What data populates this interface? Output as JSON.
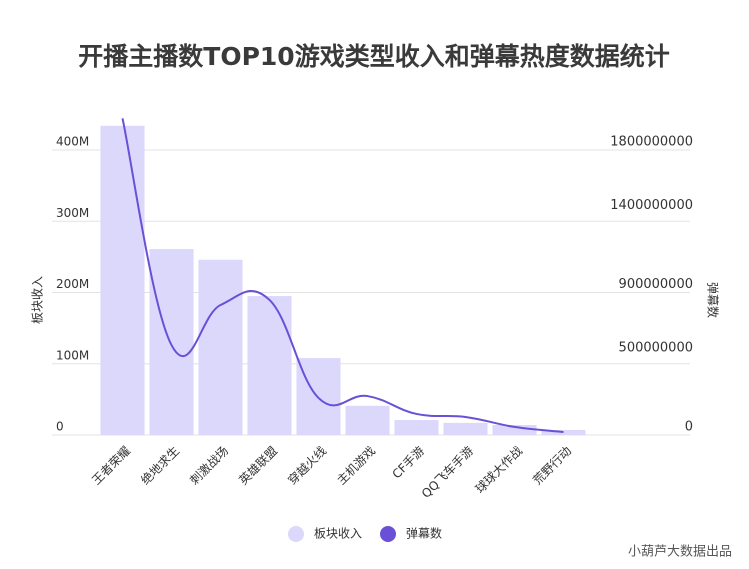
{
  "chart_data": {
    "type": "bar_line",
    "title": "开播主播数TOP10游戏类型收入和弹幕热度数据统计",
    "ylabel": "板块收入",
    "y2label": "弹幕数",
    "footer": "小葫芦大数据出品",
    "categories": [
      "王者荣耀",
      "绝地求生",
      "刺激战场",
      "英雄联盟",
      "穿越火线",
      "主机游戏",
      "CF手游",
      "QQ飞车手游",
      "球球大作战",
      "荒野行动"
    ],
    "series": [
      {
        "name": "板块收入",
        "type": "bar",
        "color": "#dcd8fb",
        "values": [
          434000000,
          261000000,
          246000000,
          195000000,
          108000000,
          41000000,
          21000000,
          17000000,
          14000000,
          7000000
        ]
      },
      {
        "name": "弹幕数",
        "type": "line",
        "axis": "y2",
        "color": "#6a50d6",
        "values": [
          2000000000,
          568000000,
          821000000,
          853000000,
          234000000,
          246000000,
          133000000,
          114000000,
          51000000,
          19000000
        ]
      }
    ],
    "ylim": [
      0,
      450000000
    ],
    "yticks": [
      0,
      {
        "value": 100000000,
        "label": "100M"
      },
      {
        "value": 200000000,
        "label": "200M"
      },
      {
        "value": 300000000,
        "label": "300M"
      },
      {
        "value": 400000000,
        "label": "400M"
      }
    ],
    "y2lim": [
      0,
      2025000000
    ],
    "y2ticks": [
      0,
      500000000,
      900000000,
      1400000000,
      1800000000
    ],
    "grid": true,
    "legend": "bottom"
  }
}
